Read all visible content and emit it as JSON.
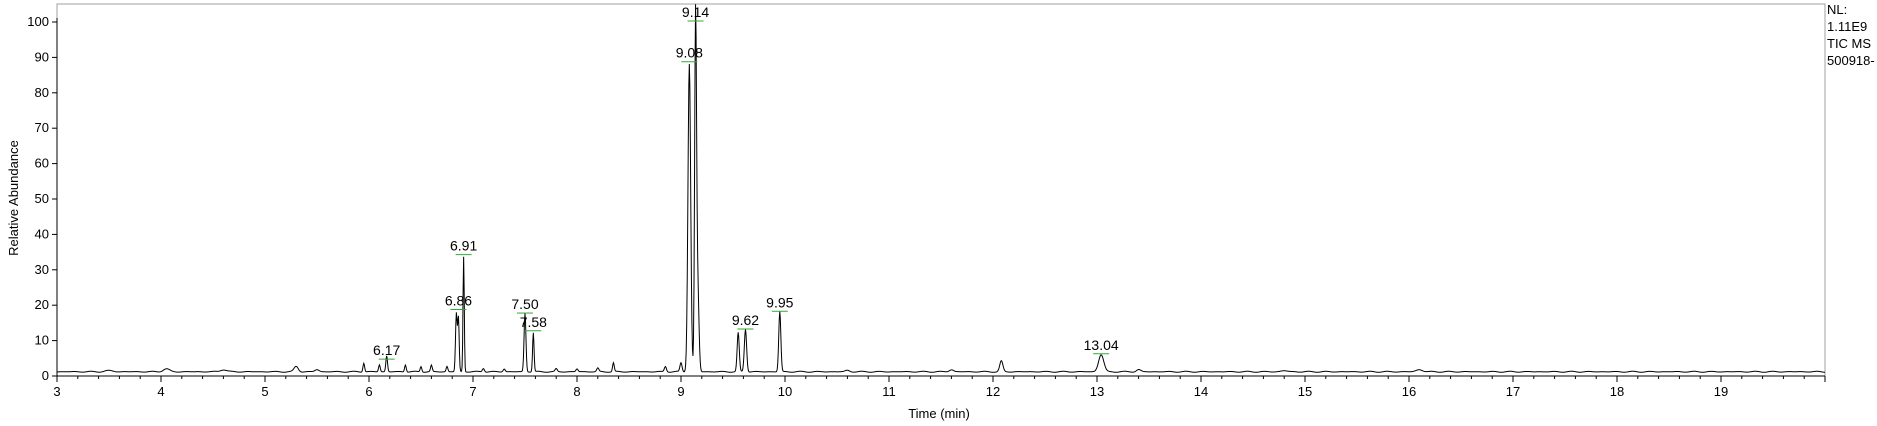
{
  "chart_data": {
    "type": "line",
    "title": "",
    "xlabel": "Time (min)",
    "ylabel": "Relative Abundance",
    "xlim": [
      3,
      20
    ],
    "ylim": [
      0,
      100
    ],
    "x_ticks": [
      3,
      4,
      5,
      6,
      7,
      8,
      9,
      10,
      11,
      12,
      13,
      14,
      15,
      16,
      17,
      18,
      19
    ],
    "y_ticks": [
      0,
      10,
      20,
      30,
      40,
      50,
      60,
      70,
      80,
      90,
      100
    ],
    "grid": false,
    "baseline": 1.2,
    "series": [
      {
        "peaks": [
          {
            "rt": 3.5,
            "h": 0.3,
            "w": 0.04
          },
          {
            "rt": 4.05,
            "h": 0.8,
            "w": 0.03
          },
          {
            "rt": 4.6,
            "h": 0.6,
            "w": 0.03
          },
          {
            "rt": 5.3,
            "h": 1.5,
            "w": 0.02
          },
          {
            "rt": 5.5,
            "h": 0.6,
            "w": 0.02
          },
          {
            "rt": 5.95,
            "h": 2.5,
            "w": 0.008
          },
          {
            "rt": 6.1,
            "h": 2.0,
            "w": 0.008
          },
          {
            "rt": 6.17,
            "h": 4.5,
            "w": 0.008
          },
          {
            "rt": 6.35,
            "h": 2.0,
            "w": 0.008
          },
          {
            "rt": 6.5,
            "h": 1.5,
            "w": 0.008
          },
          {
            "rt": 6.6,
            "h": 1.8,
            "w": 0.008
          },
          {
            "rt": 6.75,
            "h": 1.5,
            "w": 0.008
          },
          {
            "rt": 6.84,
            "h": 16.5,
            "w": 0.008
          },
          {
            "rt": 6.86,
            "h": 15.0,
            "w": 0.007
          },
          {
            "rt": 6.91,
            "h": 32.5,
            "w": 0.006
          },
          {
            "rt": 7.1,
            "h": 1.0,
            "w": 0.01
          },
          {
            "rt": 7.3,
            "h": 0.8,
            "w": 0.01
          },
          {
            "rt": 7.5,
            "h": 16.5,
            "w": 0.009
          },
          {
            "rt": 7.58,
            "h": 11.0,
            "w": 0.007
          },
          {
            "rt": 7.8,
            "h": 0.8,
            "w": 0.01
          },
          {
            "rt": 8.0,
            "h": 0.8,
            "w": 0.01
          },
          {
            "rt": 8.2,
            "h": 1.0,
            "w": 0.01
          },
          {
            "rt": 8.35,
            "h": 2.5,
            "w": 0.008
          },
          {
            "rt": 8.85,
            "h": 1.5,
            "w": 0.01
          },
          {
            "rt": 9.0,
            "h": 2.5,
            "w": 0.01
          },
          {
            "rt": 9.08,
            "h": 87.0,
            "w": 0.013
          },
          {
            "rt": 9.14,
            "h": 97.5,
            "w": 0.009
          },
          {
            "rt": 9.16,
            "h": 25.0,
            "w": 0.012
          },
          {
            "rt": 9.55,
            "h": 11.0,
            "w": 0.01
          },
          {
            "rt": 9.62,
            "h": 12.0,
            "w": 0.011
          },
          {
            "rt": 9.95,
            "h": 17.0,
            "w": 0.01
          },
          {
            "rt": 10.6,
            "h": 0.4,
            "w": 0.02
          },
          {
            "rt": 11.6,
            "h": 0.6,
            "w": 0.02
          },
          {
            "rt": 12.08,
            "h": 3.0,
            "w": 0.015
          },
          {
            "rt": 13.04,
            "h": 4.8,
            "w": 0.025
          },
          {
            "rt": 13.4,
            "h": 0.6,
            "w": 0.02
          },
          {
            "rt": 14.8,
            "h": 0.3,
            "w": 0.03
          },
          {
            "rt": 16.1,
            "h": 0.6,
            "w": 0.03
          }
        ]
      }
    ],
    "annotations": [
      {
        "text": "6.17",
        "rt": 6.17,
        "y": 4.5
      },
      {
        "text": "6.86",
        "rt": 6.86,
        "y": 18.5
      },
      {
        "text": "6.91",
        "rt": 6.91,
        "y": 34.0
      },
      {
        "text": "7.50",
        "rt": 7.5,
        "y": 17.5
      },
      {
        "text": "7.58",
        "rt": 7.58,
        "y": 12.5
      },
      {
        "text": "9.08",
        "rt": 9.08,
        "y": 88.5
      },
      {
        "text": "9.14",
        "rt": 9.14,
        "y": 100.0
      },
      {
        "text": "9.62",
        "rt": 9.62,
        "y": 13.0
      },
      {
        "text": "9.95",
        "rt": 9.95,
        "y": 18.0
      },
      {
        "text": "13.04",
        "rt": 13.04,
        "y": 6.0
      }
    ]
  },
  "info": {
    "nl_label": "NL:",
    "nl_value": "1.11E9",
    "scan_label": "TIC  MS",
    "file_id": "500918-"
  },
  "colors": {
    "trace": "#000000",
    "axis": "#000000",
    "border": "#808080",
    "marker": "#33aa33"
  }
}
